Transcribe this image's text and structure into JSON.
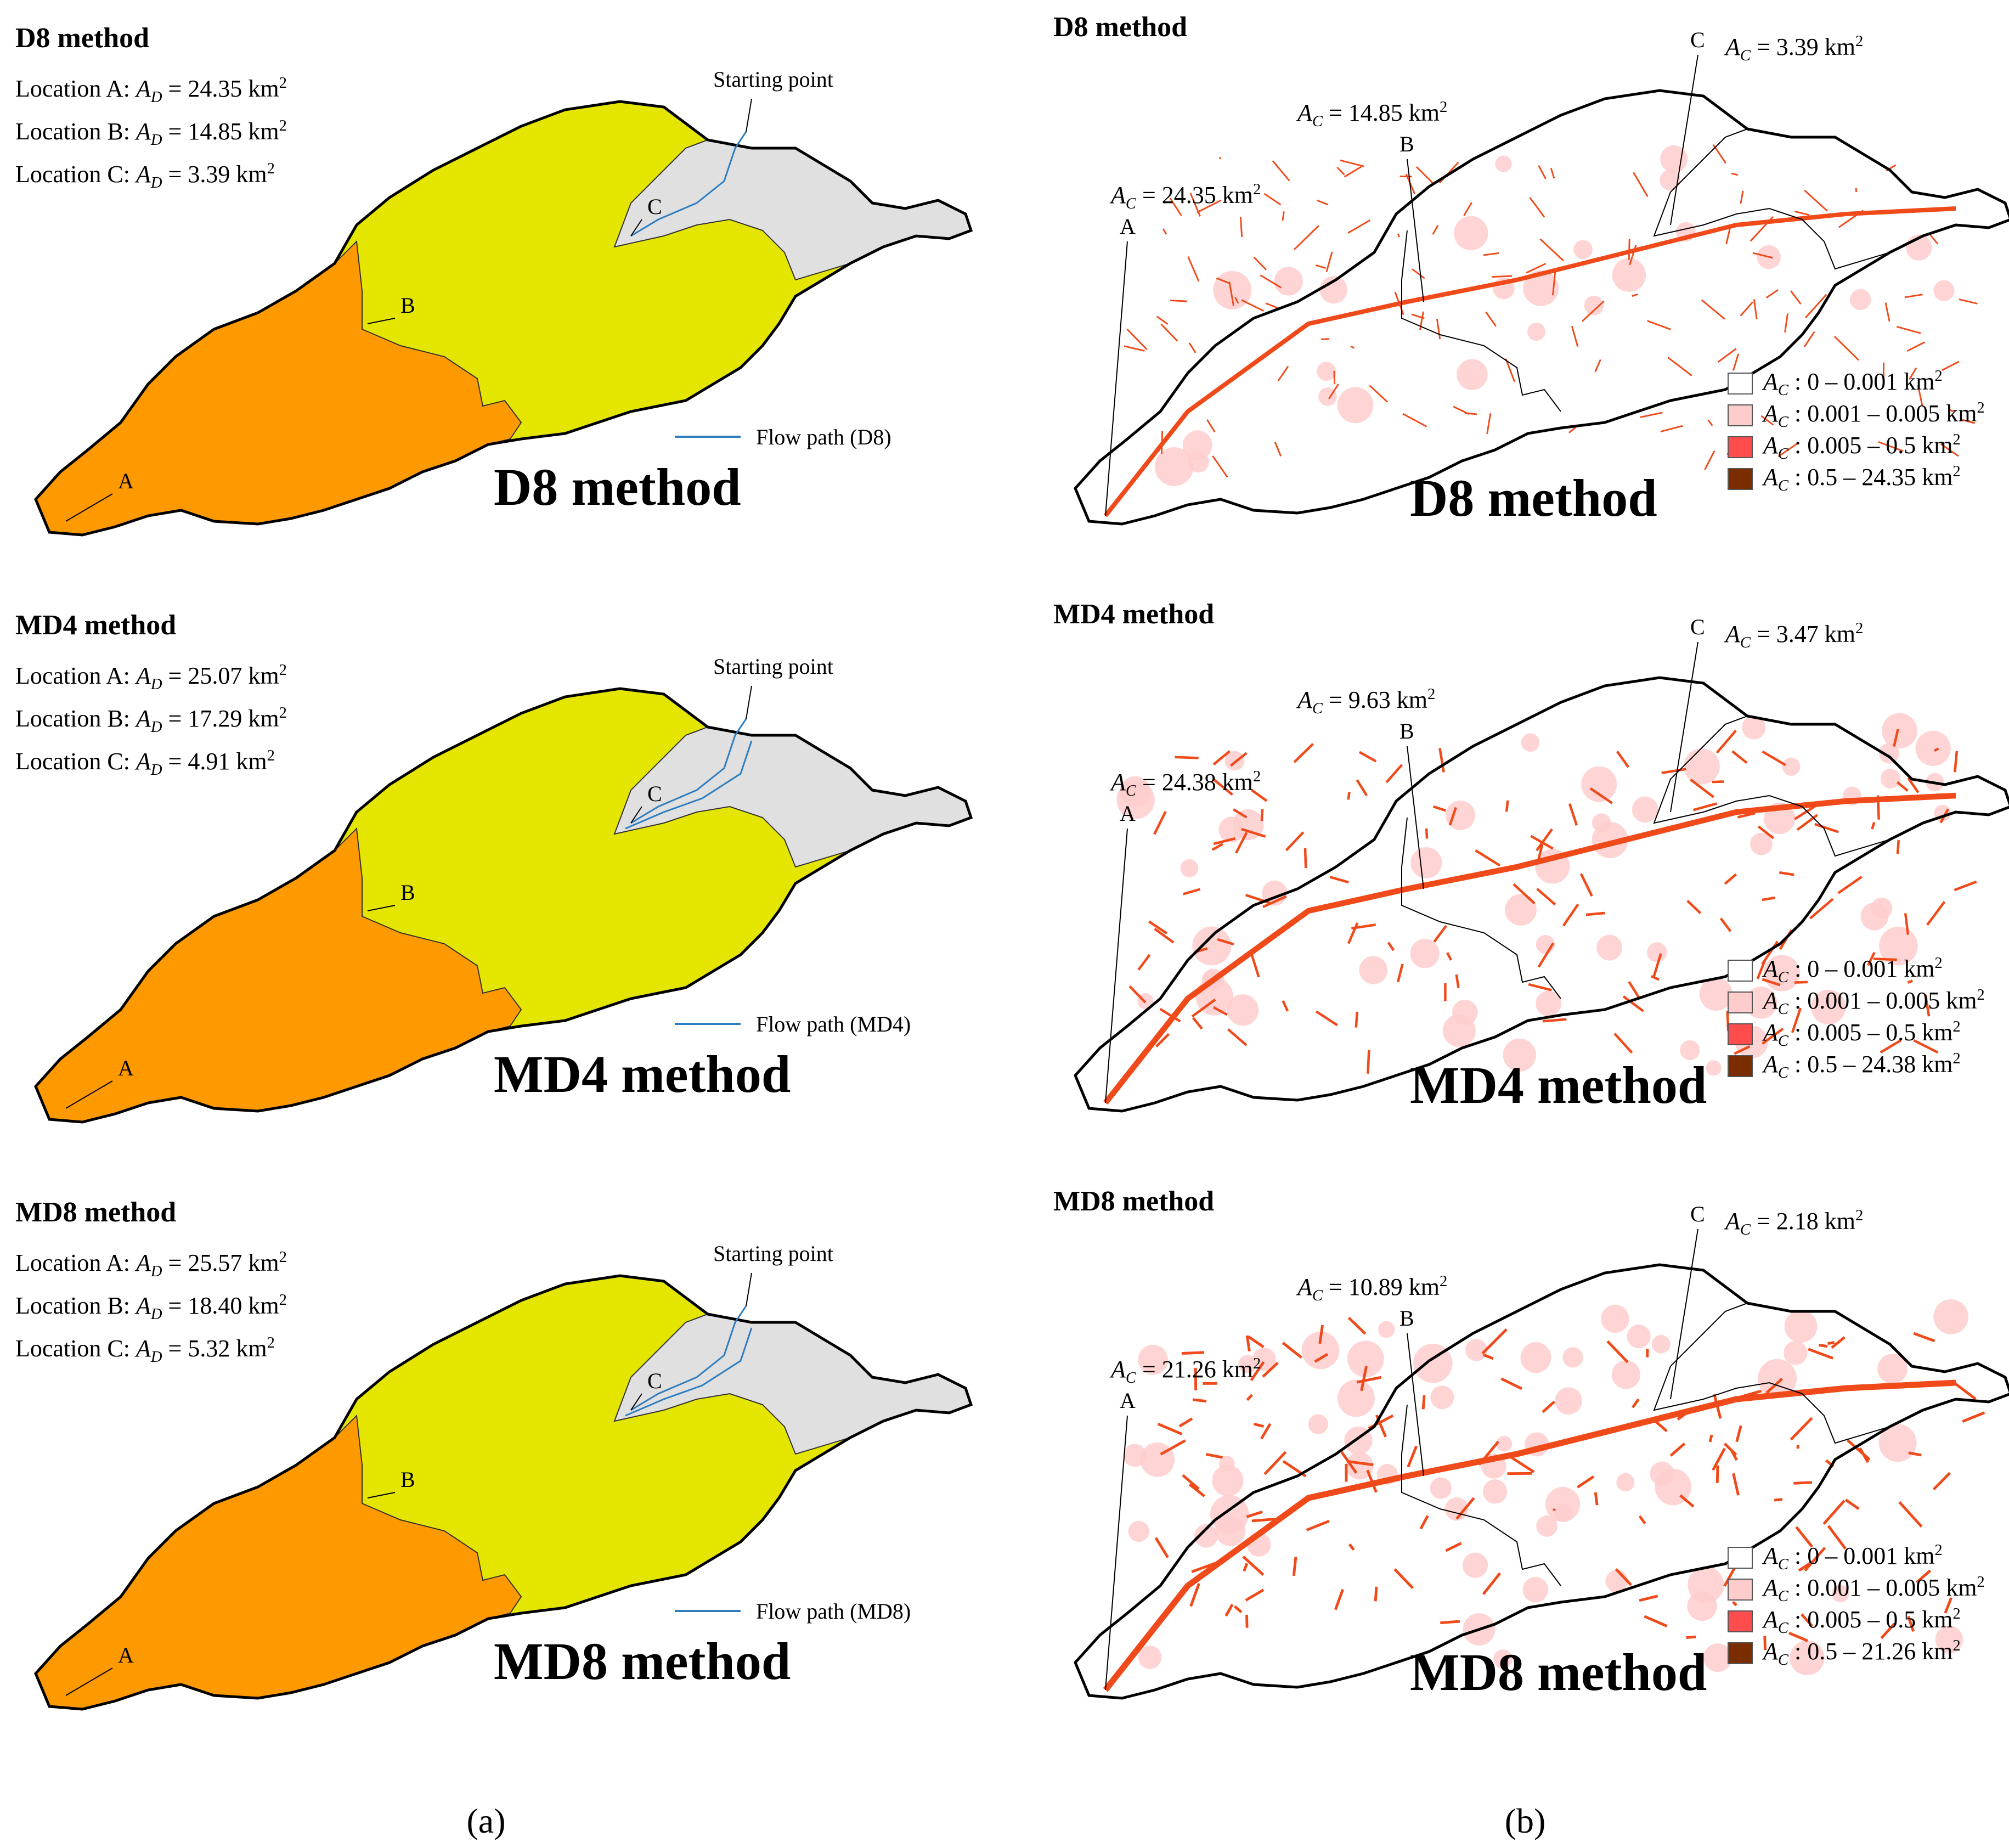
{
  "figure_labels": {
    "a": "(a)",
    "b": "(b)"
  },
  "colors": {
    "basin_A": "#FF9900",
    "basin_B": "#E5E600",
    "basin_C": "#E0E0E0",
    "flow_path": "#2E7DC0",
    "outline": "#000000",
    "legend_0": "#FFFFFF",
    "legend_1": "#FFCCCC",
    "legend_2": "#FF4D4D",
    "legend_3": "#7A2E00",
    "stream": "#F04A1A"
  },
  "left_panels": [
    {
      "header": "D8 method",
      "big_title": "D8 method",
      "locations": [
        {
          "prefix": "Location A: ",
          "var": "A",
          "sub": "D",
          "eq": " = 24.35 km",
          "sup": "2"
        },
        {
          "prefix": "Location B: ",
          "var": "A",
          "sub": "D",
          "eq": " = 14.85 km",
          "sup": "2"
        },
        {
          "prefix": "Location C: ",
          "var": "A",
          "sub": "D",
          "eq": " =   3.39 km",
          "sup": "2"
        }
      ],
      "starting_point": "Starting point",
      "point_labels": [
        "A",
        "B",
        "C"
      ],
      "flow_path_label": "Flow path (D8)"
    },
    {
      "header": "MD4 method",
      "big_title": "MD4 method",
      "locations": [
        {
          "prefix": "Location A: ",
          "var": "A",
          "sub": "D",
          "eq": " = 25.07 km",
          "sup": "2"
        },
        {
          "prefix": "Location B: ",
          "var": "A",
          "sub": "D",
          "eq": " = 17.29 km",
          "sup": "2"
        },
        {
          "prefix": "Location C: ",
          "var": "A",
          "sub": "D",
          "eq": " =   4.91 km",
          "sup": "2"
        }
      ],
      "starting_point": "Starting point",
      "point_labels": [
        "A",
        "B",
        "C"
      ],
      "flow_path_label": "Flow path (MD4)"
    },
    {
      "header": "MD8 method",
      "big_title": "MD8 method",
      "locations": [
        {
          "prefix": "Location A: ",
          "var": "A",
          "sub": "D",
          "eq": " = 25.57 km",
          "sup": "2"
        },
        {
          "prefix": "Location B: ",
          "var": "A",
          "sub": "D",
          "eq": " = 18.40 km",
          "sup": "2"
        },
        {
          "prefix": "Location C: ",
          "var": "A",
          "sub": "D",
          "eq": " =   5.32 km",
          "sup": "2"
        }
      ],
      "starting_point": "Starting point",
      "point_labels": [
        "A",
        "B",
        "C"
      ],
      "flow_path_label": "Flow path (MD8)"
    }
  ],
  "right_panels": [
    {
      "header": "D8 method",
      "big_title": "D8 method",
      "point_labels": [
        "A",
        "B",
        "C"
      ],
      "annotations": [
        {
          "var": "A",
          "sub": "C",
          "eq": " = 24.35 km",
          "sup": "2"
        },
        {
          "var": "A",
          "sub": "C",
          "eq": " = 14.85 km",
          "sup": "2"
        },
        {
          "var": "A",
          "sub": "C",
          "eq": " = 3.39 km",
          "sup": "2"
        }
      ],
      "legend": [
        {
          "var": "A",
          "sub": "C",
          "eq": " : 0 – 0.001 km",
          "sup": "2"
        },
        {
          "var": "A",
          "sub": "C",
          "eq": " : 0.001 – 0.005 km",
          "sup": "2"
        },
        {
          "var": "A",
          "sub": "C",
          "eq": " : 0.005 – 0.5 km",
          "sup": "2"
        },
        {
          "var": "A",
          "sub": "C",
          "eq": " : 0.5 – 24.35 km",
          "sup": "2"
        }
      ]
    },
    {
      "header": "MD4 method",
      "big_title": "MD4 method",
      "point_labels": [
        "A",
        "B",
        "C"
      ],
      "annotations": [
        {
          "var": "A",
          "sub": "C",
          "eq": " = 24.38 km",
          "sup": "2"
        },
        {
          "var": "A",
          "sub": "C",
          "eq": " = 9.63 km",
          "sup": "2"
        },
        {
          "var": "A",
          "sub": "C",
          "eq": " = 3.47 km",
          "sup": "2"
        }
      ],
      "legend": [
        {
          "var": "A",
          "sub": "C",
          "eq": " : 0 – 0.001 km",
          "sup": "2"
        },
        {
          "var": "A",
          "sub": "C",
          "eq": " : 0.001 – 0.005 km",
          "sup": "2"
        },
        {
          "var": "A",
          "sub": "C",
          "eq": " : 0.005 – 0.5 km",
          "sup": "2"
        },
        {
          "var": "A",
          "sub": "C",
          "eq": " : 0.5 – 24.38 km",
          "sup": "2"
        }
      ]
    },
    {
      "header": "MD8 method",
      "big_title": "MD8 method",
      "point_labels": [
        "A",
        "B",
        "C"
      ],
      "annotations": [
        {
          "var": "A",
          "sub": "C",
          "eq": " = 21.26 km",
          "sup": "2"
        },
        {
          "var": "A",
          "sub": "C",
          "eq": " = 10.89 km",
          "sup": "2"
        },
        {
          "var": "A",
          "sub": "C",
          "eq": " = 2.18 km",
          "sup": "2"
        }
      ],
      "legend": [
        {
          "var": "A",
          "sub": "C",
          "eq": " : 0 – 0.001 km",
          "sup": "2"
        },
        {
          "var": "A",
          "sub": "C",
          "eq": " : 0.001 – 0.005 km",
          "sup": "2"
        },
        {
          "var": "A",
          "sub": "C",
          "eq": " : 0.005 – 0.5 km",
          "sup": "2"
        },
        {
          "var": "A",
          "sub": "C",
          "eq": " : 0.5 – 21.26 km",
          "sup": "2"
        }
      ]
    }
  ]
}
